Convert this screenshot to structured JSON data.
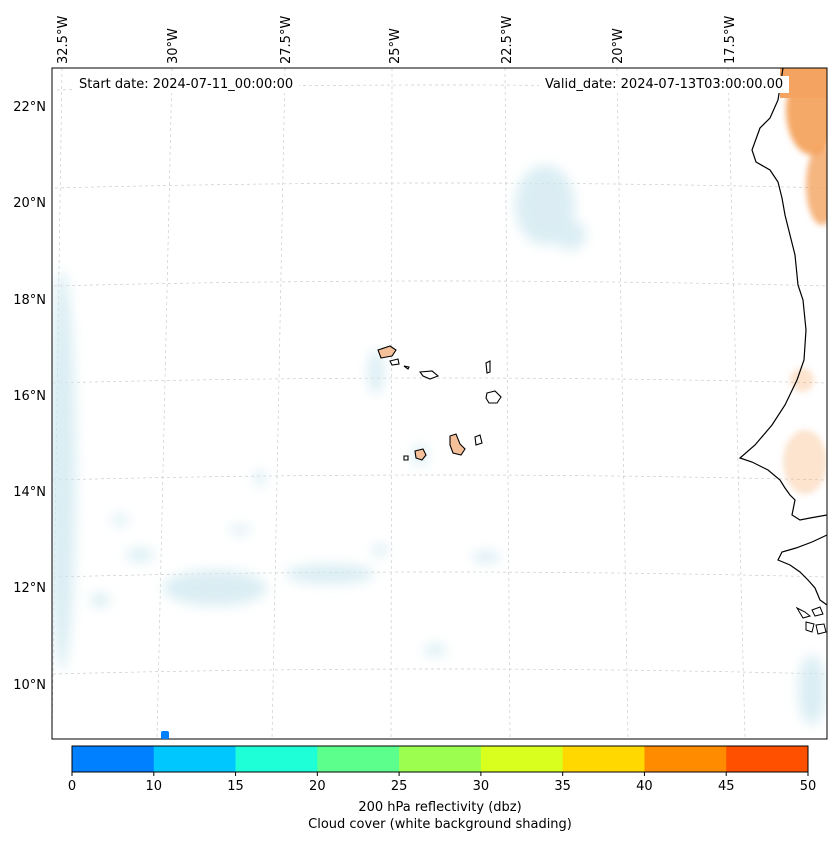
{
  "map": {
    "start_label": "Start date: 2024-07-11_00:00:00",
    "valid_label": "Valid_date: 2024-07-13T03:00:00.00",
    "lon_labels": [
      "32.5°W",
      "30°W",
      "27.5°W",
      "25°W",
      "22.5°W",
      "20°W",
      "17.5°W"
    ],
    "lat_labels": [
      "22°N",
      "20°N",
      "18°N",
      "16°N",
      "14°N",
      "12°N",
      "10°N"
    ],
    "gridlines": true,
    "cloud_color": "#cfe8f0",
    "land_fill_color": "#f4a460",
    "coastline_color": "#000000"
  },
  "colorbar": {
    "ticks": [
      "0",
      "10",
      "15",
      "20",
      "25",
      "30",
      "35",
      "40",
      "45",
      "50"
    ],
    "colors": [
      "#0080ff",
      "#00c8ff",
      "#1effd8",
      "#5cff8c",
      "#9cff50",
      "#d8ff1e",
      "#ffd800",
      "#ff8c00",
      "#ff5000"
    ],
    "label_line1": "200 hPa reflectivity (dbz)",
    "label_line2": "Cloud cover (white background shading)"
  }
}
